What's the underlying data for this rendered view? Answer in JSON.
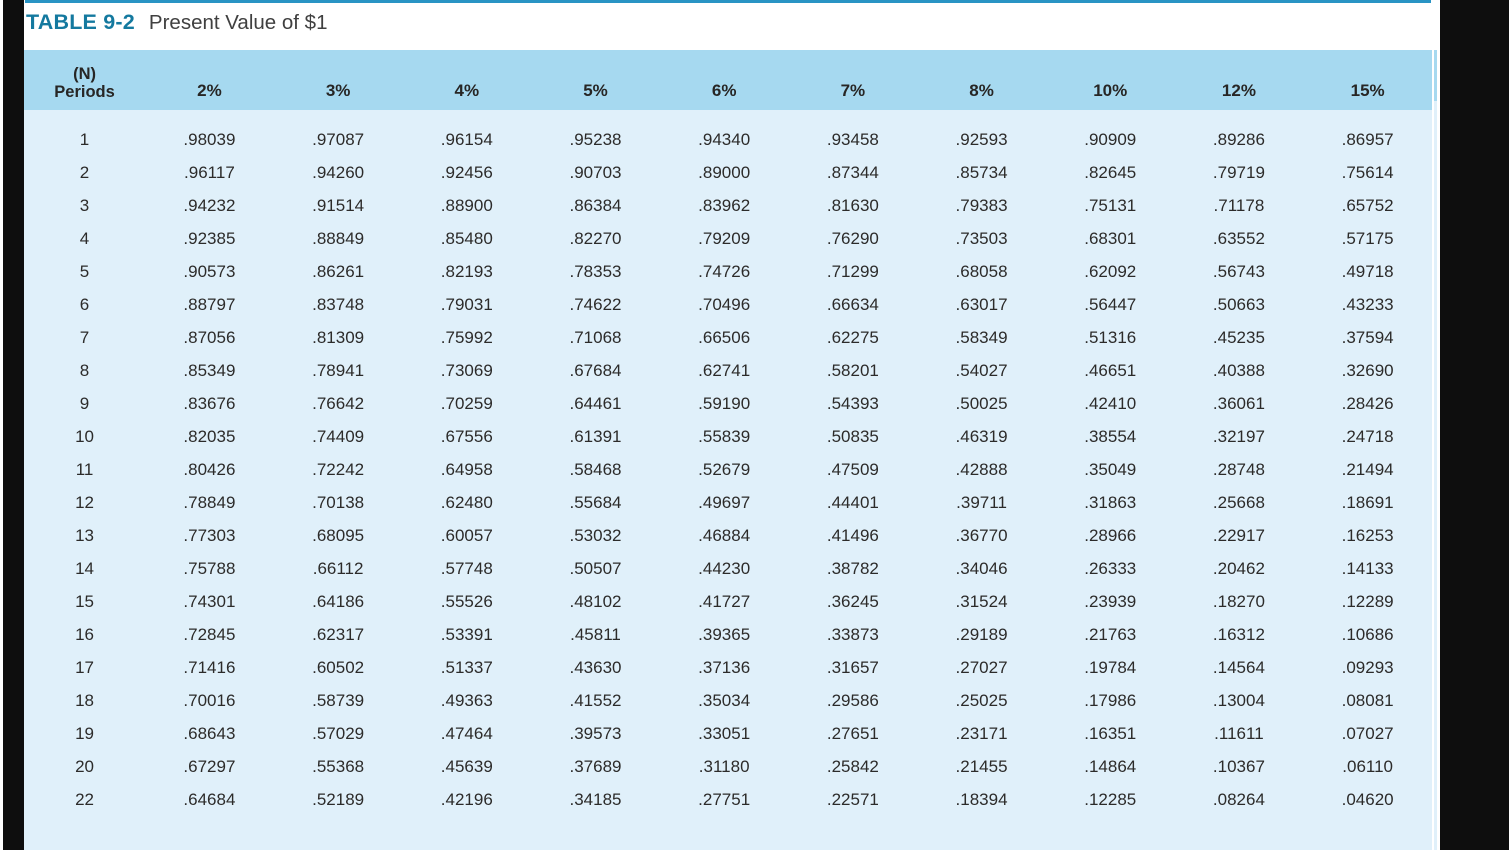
{
  "page": {
    "label": "TABLE 9-2",
    "title": "Present Value of $1"
  },
  "table": {
    "period_header_line1": "(N)",
    "period_header_line2": "Periods",
    "rate_headers": [
      "2%",
      "3%",
      "4%",
      "5%",
      "6%",
      "7%",
      "8%",
      "10%",
      "12%",
      "15%"
    ],
    "rows": [
      {
        "period": "1",
        "values": [
          ".98039",
          ".97087",
          ".96154",
          ".95238",
          ".94340",
          ".93458",
          ".92593",
          ".90909",
          ".89286",
          ".86957"
        ]
      },
      {
        "period": "2",
        "values": [
          ".96117",
          ".94260",
          ".92456",
          ".90703",
          ".89000",
          ".87344",
          ".85734",
          ".82645",
          ".79719",
          ".75614"
        ]
      },
      {
        "period": "3",
        "values": [
          ".94232",
          ".91514",
          ".88900",
          ".86384",
          ".83962",
          ".81630",
          ".79383",
          ".75131",
          ".71178",
          ".65752"
        ]
      },
      {
        "period": "4",
        "values": [
          ".92385",
          ".88849",
          ".85480",
          ".82270",
          ".79209",
          ".76290",
          ".73503",
          ".68301",
          ".63552",
          ".57175"
        ]
      },
      {
        "period": "5",
        "values": [
          ".90573",
          ".86261",
          ".82193",
          ".78353",
          ".74726",
          ".71299",
          ".68058",
          ".62092",
          ".56743",
          ".49718"
        ]
      },
      {
        "period": "6",
        "values": [
          ".88797",
          ".83748",
          ".79031",
          ".74622",
          ".70496",
          ".66634",
          ".63017",
          ".56447",
          ".50663",
          ".43233"
        ]
      },
      {
        "period": "7",
        "values": [
          ".87056",
          ".81309",
          ".75992",
          ".71068",
          ".66506",
          ".62275",
          ".58349",
          ".51316",
          ".45235",
          ".37594"
        ]
      },
      {
        "period": "8",
        "values": [
          ".85349",
          ".78941",
          ".73069",
          ".67684",
          ".62741",
          ".58201",
          ".54027",
          ".46651",
          ".40388",
          ".32690"
        ]
      },
      {
        "period": "9",
        "values": [
          ".83676",
          ".76642",
          ".70259",
          ".64461",
          ".59190",
          ".54393",
          ".50025",
          ".42410",
          ".36061",
          ".28426"
        ]
      },
      {
        "period": "10",
        "values": [
          ".82035",
          ".74409",
          ".67556",
          ".61391",
          ".55839",
          ".50835",
          ".46319",
          ".38554",
          ".32197",
          ".24718"
        ]
      },
      {
        "period": "11",
        "values": [
          ".80426",
          ".72242",
          ".64958",
          ".58468",
          ".52679",
          ".47509",
          ".42888",
          ".35049",
          ".28748",
          ".21494"
        ]
      },
      {
        "period": "12",
        "values": [
          ".78849",
          ".70138",
          ".62480",
          ".55684",
          ".49697",
          ".44401",
          ".39711",
          ".31863",
          ".25668",
          ".18691"
        ]
      },
      {
        "period": "13",
        "values": [
          ".77303",
          ".68095",
          ".60057",
          ".53032",
          ".46884",
          ".41496",
          ".36770",
          ".28966",
          ".22917",
          ".16253"
        ]
      },
      {
        "period": "14",
        "values": [
          ".75788",
          ".66112",
          ".57748",
          ".50507",
          ".44230",
          ".38782",
          ".34046",
          ".26333",
          ".20462",
          ".14133"
        ]
      },
      {
        "period": "15",
        "values": [
          ".74301",
          ".64186",
          ".55526",
          ".48102",
          ".41727",
          ".36245",
          ".31524",
          ".23939",
          ".18270",
          ".12289"
        ]
      },
      {
        "period": "16",
        "values": [
          ".72845",
          ".62317",
          ".53391",
          ".45811",
          ".39365",
          ".33873",
          ".29189",
          ".21763",
          ".16312",
          ".10686"
        ]
      },
      {
        "period": "17",
        "values": [
          ".71416",
          ".60502",
          ".51337",
          ".43630",
          ".37136",
          ".31657",
          ".27027",
          ".19784",
          ".14564",
          ".09293"
        ]
      },
      {
        "period": "18",
        "values": [
          ".70016",
          ".58739",
          ".49363",
          ".41552",
          ".35034",
          ".29586",
          ".25025",
          ".17986",
          ".13004",
          ".08081"
        ]
      },
      {
        "period": "19",
        "values": [
          ".68643",
          ".57029",
          ".47464",
          ".39573",
          ".33051",
          ".27651",
          ".23171",
          ".16351",
          ".11611",
          ".07027"
        ]
      },
      {
        "period": "20",
        "values": [
          ".67297",
          ".55368",
          ".45639",
          ".37689",
          ".31180",
          ".25842",
          ".21455",
          ".14864",
          ".10367",
          ".06110"
        ]
      },
      {
        "period": "22",
        "values": [
          ".64684",
          ".52189",
          ".42196",
          ".34185",
          ".27751",
          ".22571",
          ".18394",
          ".12285",
          ".08264",
          ".04620"
        ]
      }
    ]
  },
  "colors": {
    "accent_blue": "#14799f",
    "top_rule_blue": "#2994c4",
    "header_band": "#a6d9f0",
    "body_band": "#e0f0fa",
    "text_dark": "#2c2b2a",
    "title_text": "#404040",
    "side_bar_black": "#0e0e0e"
  }
}
